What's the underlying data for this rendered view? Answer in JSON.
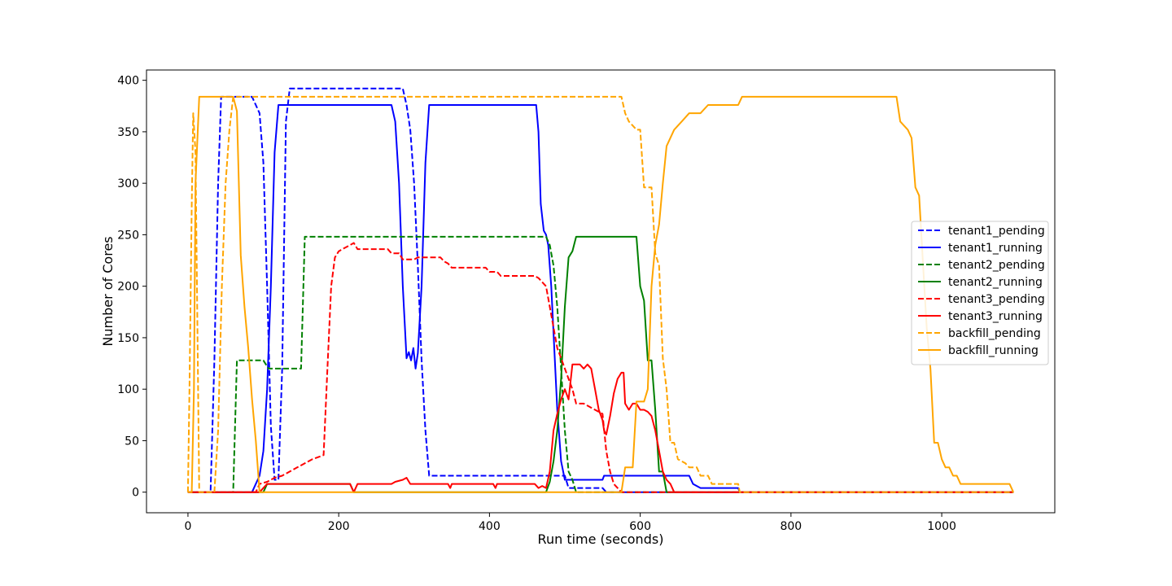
{
  "chart_data": {
    "type": "line",
    "title": "",
    "xlabel": "Run time (seconds)",
    "ylabel": "Number of Cores",
    "xlim": [
      -55,
      1150
    ],
    "ylim": [
      -20,
      410
    ],
    "xticks": [
      0,
      200,
      400,
      600,
      800,
      1000
    ],
    "yticks": [
      0,
      50,
      100,
      150,
      200,
      250,
      300,
      350,
      400
    ],
    "grid": false,
    "legend_position": "right",
    "series": [
      {
        "name": "tenant1_pending",
        "color": "#0000ff",
        "dash": "dashed",
        "points": [
          [
            0,
            0
          ],
          [
            30,
            0
          ],
          [
            35,
            128
          ],
          [
            40,
            300
          ],
          [
            44,
            384
          ],
          [
            85,
            384
          ],
          [
            90,
            376
          ],
          [
            95,
            368
          ],
          [
            100,
            320
          ],
          [
            105,
            200
          ],
          [
            110,
            64
          ],
          [
            115,
            12
          ],
          [
            120,
            12
          ],
          [
            125,
            120
          ],
          [
            130,
            360
          ],
          [
            135,
            392
          ],
          [
            285,
            392
          ],
          [
            290,
            376
          ],
          [
            295,
            352
          ],
          [
            300,
            300
          ],
          [
            305,
            220
          ],
          [
            310,
            128
          ],
          [
            315,
            60
          ],
          [
            320,
            16
          ],
          [
            500,
            16
          ],
          [
            505,
            4
          ],
          [
            550,
            4
          ],
          [
            555,
            0
          ],
          [
            1095,
            0
          ]
        ]
      },
      {
        "name": "tenant1_running",
        "color": "#0000ff",
        "dash": "solid",
        "points": [
          [
            0,
            0
          ],
          [
            85,
            0
          ],
          [
            90,
            8
          ],
          [
            95,
            16
          ],
          [
            100,
            40
          ],
          [
            105,
            100
          ],
          [
            110,
            200
          ],
          [
            115,
            330
          ],
          [
            120,
            376
          ],
          [
            270,
            376
          ],
          [
            275,
            360
          ],
          [
            280,
            300
          ],
          [
            285,
            200
          ],
          [
            290,
            130
          ],
          [
            293,
            136
          ],
          [
            296,
            128
          ],
          [
            299,
            140
          ],
          [
            302,
            120
          ],
          [
            305,
            135
          ],
          [
            310,
            200
          ],
          [
            315,
            320
          ],
          [
            320,
            376
          ],
          [
            462,
            376
          ],
          [
            465,
            350
          ],
          [
            468,
            280
          ],
          [
            472,
            254
          ],
          [
            475,
            250
          ],
          [
            478,
            240
          ],
          [
            482,
            200
          ],
          [
            486,
            140
          ],
          [
            490,
            80
          ],
          [
            495,
            30
          ],
          [
            500,
            12
          ],
          [
            550,
            12
          ],
          [
            552,
            16
          ],
          [
            665,
            16
          ],
          [
            670,
            8
          ],
          [
            680,
            4
          ],
          [
            730,
            4
          ],
          [
            732,
            0
          ],
          [
            1095,
            0
          ]
        ]
      },
      {
        "name": "tenant2_pending",
        "color": "#008000",
        "dash": "dashed",
        "points": [
          [
            0,
            0
          ],
          [
            60,
            0
          ],
          [
            65,
            128
          ],
          [
            100,
            128
          ],
          [
            107,
            120
          ],
          [
            150,
            120
          ],
          [
            155,
            248
          ],
          [
            475,
            248
          ],
          [
            480,
            240
          ],
          [
            485,
            220
          ],
          [
            490,
            180
          ],
          [
            495,
            120
          ],
          [
            500,
            60
          ],
          [
            505,
            20
          ],
          [
            510,
            12
          ],
          [
            515,
            0
          ],
          [
            1095,
            0
          ]
        ]
      },
      {
        "name": "tenant2_running",
        "color": "#008000",
        "dash": "solid",
        "points": [
          [
            0,
            0
          ],
          [
            100,
            0
          ],
          [
            105,
            8
          ],
          [
            215,
            8
          ],
          [
            220,
            0
          ],
          [
            475,
            0
          ],
          [
            480,
            10
          ],
          [
            485,
            30
          ],
          [
            490,
            60
          ],
          [
            495,
            110
          ],
          [
            500,
            180
          ],
          [
            505,
            228
          ],
          [
            510,
            234
          ],
          [
            515,
            248
          ],
          [
            595,
            248
          ],
          [
            600,
            200
          ],
          [
            605,
            186
          ],
          [
            610,
            128
          ],
          [
            615,
            128
          ],
          [
            620,
            80
          ],
          [
            625,
            20
          ],
          [
            630,
            20
          ],
          [
            635,
            0
          ],
          [
            1095,
            0
          ]
        ]
      },
      {
        "name": "tenant3_pending",
        "color": "#ff0000",
        "dash": "dashed",
        "points": [
          [
            0,
            0
          ],
          [
            90,
            0
          ],
          [
            95,
            8
          ],
          [
            105,
            10
          ],
          [
            115,
            14
          ],
          [
            125,
            16
          ],
          [
            135,
            20
          ],
          [
            145,
            24
          ],
          [
            155,
            28
          ],
          [
            165,
            32
          ],
          [
            180,
            36
          ],
          [
            185,
            120
          ],
          [
            190,
            200
          ],
          [
            195,
            228
          ],
          [
            200,
            234
          ],
          [
            205,
            236
          ],
          [
            210,
            238
          ],
          [
            215,
            240
          ],
          [
            220,
            242
          ],
          [
            225,
            236
          ],
          [
            265,
            236
          ],
          [
            270,
            232
          ],
          [
            280,
            232
          ],
          [
            285,
            226
          ],
          [
            300,
            226
          ],
          [
            305,
            228
          ],
          [
            335,
            228
          ],
          [
            340,
            224
          ],
          [
            345,
            222
          ],
          [
            350,
            218
          ],
          [
            395,
            218
          ],
          [
            400,
            214
          ],
          [
            410,
            214
          ],
          [
            415,
            210
          ],
          [
            460,
            210
          ],
          [
            465,
            208
          ],
          [
            475,
            200
          ],
          [
            480,
            180
          ],
          [
            485,
            160
          ],
          [
            490,
            140
          ],
          [
            495,
            130
          ],
          [
            500,
            120
          ],
          [
            505,
            110
          ],
          [
            510,
            100
          ],
          [
            515,
            86
          ],
          [
            525,
            86
          ],
          [
            530,
            84
          ],
          [
            540,
            80
          ],
          [
            550,
            76
          ],
          [
            555,
            40
          ],
          [
            560,
            20
          ],
          [
            565,
            8
          ],
          [
            570,
            4
          ],
          [
            575,
            0
          ],
          [
            1095,
            0
          ]
        ]
      },
      {
        "name": "tenant3_running",
        "color": "#ff0000",
        "dash": "solid",
        "points": [
          [
            0,
            0
          ],
          [
            95,
            0
          ],
          [
            100,
            4
          ],
          [
            105,
            8
          ],
          [
            215,
            8
          ],
          [
            220,
            0
          ],
          [
            225,
            8
          ],
          [
            270,
            8
          ],
          [
            275,
            10
          ],
          [
            285,
            12
          ],
          [
            290,
            14
          ],
          [
            295,
            8
          ],
          [
            345,
            8
          ],
          [
            348,
            4
          ],
          [
            350,
            8
          ],
          [
            405,
            8
          ],
          [
            408,
            4
          ],
          [
            410,
            8
          ],
          [
            460,
            8
          ],
          [
            465,
            4
          ],
          [
            470,
            6
          ],
          [
            475,
            4
          ],
          [
            480,
            20
          ],
          [
            485,
            60
          ],
          [
            490,
            76
          ],
          [
            495,
            90
          ],
          [
            500,
            100
          ],
          [
            505,
            90
          ],
          [
            510,
            124
          ],
          [
            520,
            124
          ],
          [
            525,
            120
          ],
          [
            530,
            124
          ],
          [
            535,
            120
          ],
          [
            540,
            100
          ],
          [
            545,
            80
          ],
          [
            550,
            70
          ],
          [
            552,
            60
          ],
          [
            555,
            56
          ],
          [
            560,
            74
          ],
          [
            565,
            96
          ],
          [
            570,
            110
          ],
          [
            575,
            116
          ],
          [
            578,
            116
          ],
          [
            580,
            86
          ],
          [
            585,
            80
          ],
          [
            590,
            86
          ],
          [
            595,
            86
          ],
          [
            600,
            80
          ],
          [
            605,
            80
          ],
          [
            610,
            78
          ],
          [
            615,
            74
          ],
          [
            620,
            60
          ],
          [
            625,
            40
          ],
          [
            630,
            20
          ],
          [
            635,
            12
          ],
          [
            640,
            8
          ],
          [
            645,
            0
          ],
          [
            1095,
            0
          ]
        ]
      },
      {
        "name": "backfill_pending",
        "color": "#ffa500",
        "dash": "dashed",
        "points": [
          [
            0,
            0
          ],
          [
            2,
            100
          ],
          [
            5,
            280
          ],
          [
            7,
            368
          ],
          [
            10,
            330
          ],
          [
            15,
            0
          ],
          [
            35,
            0
          ],
          [
            40,
            60
          ],
          [
            45,
            200
          ],
          [
            50,
            300
          ],
          [
            55,
            352
          ],
          [
            60,
            384
          ],
          [
            575,
            384
          ],
          [
            580,
            368
          ],
          [
            585,
            360
          ],
          [
            590,
            356
          ],
          [
            595,
            352
          ],
          [
            600,
            352
          ],
          [
            605,
            296
          ],
          [
            615,
            296
          ],
          [
            620,
            232
          ],
          [
            625,
            220
          ],
          [
            630,
            130
          ],
          [
            635,
            100
          ],
          [
            640,
            48
          ],
          [
            645,
            48
          ],
          [
            650,
            32
          ],
          [
            655,
            30
          ],
          [
            660,
            28
          ],
          [
            665,
            24
          ],
          [
            675,
            24
          ],
          [
            680,
            16
          ],
          [
            690,
            16
          ],
          [
            695,
            8
          ],
          [
            730,
            8
          ],
          [
            732,
            0
          ],
          [
            1095,
            0
          ]
        ]
      },
      {
        "name": "backfill_running",
        "color": "#ffa500",
        "dash": "solid",
        "points": [
          [
            0,
            0
          ],
          [
            5,
            0
          ],
          [
            8,
            100
          ],
          [
            10,
            300
          ],
          [
            15,
            384
          ],
          [
            60,
            384
          ],
          [
            65,
            370
          ],
          [
            70,
            230
          ],
          [
            75,
            180
          ],
          [
            80,
            140
          ],
          [
            85,
            90
          ],
          [
            90,
            50
          ],
          [
            95,
            0
          ],
          [
            575,
            0
          ],
          [
            580,
            24
          ],
          [
            590,
            24
          ],
          [
            595,
            88
          ],
          [
            605,
            88
          ],
          [
            610,
            100
          ],
          [
            615,
            200
          ],
          [
            620,
            240
          ],
          [
            625,
            260
          ],
          [
            630,
            300
          ],
          [
            635,
            336
          ],
          [
            645,
            352
          ],
          [
            655,
            360
          ],
          [
            665,
            368
          ],
          [
            680,
            368
          ],
          [
            690,
            376
          ],
          [
            730,
            376
          ],
          [
            735,
            384
          ],
          [
            940,
            384
          ],
          [
            945,
            360
          ],
          [
            955,
            352
          ],
          [
            960,
            344
          ],
          [
            965,
            296
          ],
          [
            970,
            288
          ],
          [
            975,
            224
          ],
          [
            980,
            160
          ],
          [
            985,
            120
          ],
          [
            990,
            48
          ],
          [
            995,
            48
          ],
          [
            1000,
            32
          ],
          [
            1005,
            24
          ],
          [
            1010,
            24
          ],
          [
            1015,
            16
          ],
          [
            1020,
            16
          ],
          [
            1025,
            8
          ],
          [
            1090,
            8
          ],
          [
            1095,
            0
          ]
        ]
      }
    ]
  }
}
